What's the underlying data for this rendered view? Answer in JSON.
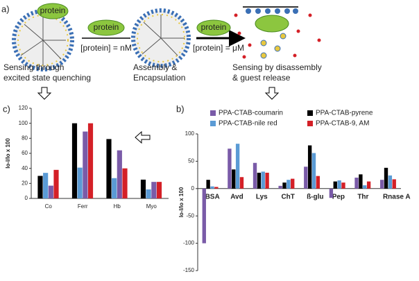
{
  "panel_labels": [
    "a)",
    "c)",
    "b)"
  ],
  "schematic": {
    "protein_labels": [
      "protein",
      "protein",
      "protein"
    ],
    "conditions": [
      "[protein] = nM",
      "[protein] = μM"
    ],
    "captions": [
      [
        "Sensing through",
        "excited state quenching"
      ],
      [
        "Assembly &",
        "Encapsulation"
      ],
      [
        "Sensing by disassembly",
        "& guest release"
      ]
    ]
  },
  "chart_data": [
    {
      "type": "bar",
      "ylabel": "Io-I/Io x 100",
      "categories": [
        "Co",
        "Ferr",
        "Hb",
        "Myo"
      ],
      "series": [
        {
          "color": "#000000",
          "values": [
            30,
            100,
            79,
            25
          ]
        },
        {
          "color": "#5b9bd5",
          "values": [
            34,
            41,
            27,
            12
          ]
        },
        {
          "color": "#7a5ba8",
          "values": [
            17,
            89,
            64,
            22
          ]
        },
        {
          "color": "#d42027",
          "values": [
            38,
            100,
            40,
            22
          ]
        }
      ],
      "ylim": [
        0,
        120
      ],
      "yticks": [
        0,
        20,
        40,
        60,
        80,
        100,
        120
      ]
    },
    {
      "type": "bar",
      "ylabel": "Io-I/Io x 100",
      "categories": [
        "BSA",
        "Avd",
        "Lys",
        "ChT",
        "ß-glu",
        "Pep",
        "Thr",
        "Rnase A"
      ],
      "series": [
        {
          "name": "PPA-CTAB-coumarin",
          "color": "#7a5ba8",
          "values": [
            -100,
            73,
            47,
            5,
            40,
            -17,
            20,
            16
          ]
        },
        {
          "name": "PPA-CTAB-pyrene",
          "color": "#000000",
          "values": [
            16,
            35,
            29,
            11,
            79,
            13,
            26,
            38
          ]
        },
        {
          "name": "PPA-CTAB-nile red",
          "color": "#5b9bd5",
          "values": [
            4,
            82,
            31,
            16,
            65,
            15,
            6,
            24
          ]
        },
        {
          "name": "PPA-CTAB-9, AM",
          "color": "#d42027",
          "values": [
            3,
            21,
            29,
            18,
            23,
            11,
            13,
            17
          ]
        }
      ],
      "ylim": [
        -150,
        100
      ],
      "yticks": [
        -150,
        -100,
        -50,
        0,
        50,
        100
      ]
    }
  ]
}
